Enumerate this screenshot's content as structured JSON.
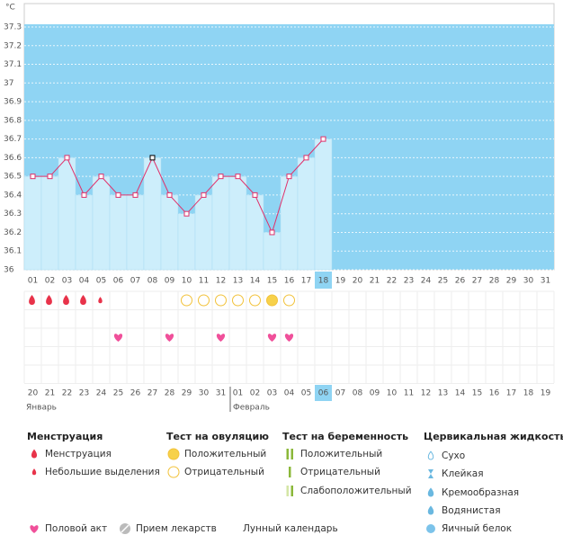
{
  "chart_data": {
    "type": "line",
    "y_unit": "°C",
    "categories": [
      "01",
      "02",
      "03",
      "04",
      "05",
      "06",
      "07",
      "08",
      "09",
      "10",
      "11",
      "12",
      "13",
      "14",
      "15",
      "16",
      "17",
      "18",
      "19",
      "20",
      "21",
      "22",
      "23",
      "24",
      "25",
      "26",
      "27",
      "28",
      "29",
      "30",
      "31"
    ],
    "values": [
      36.5,
      36.5,
      36.6,
      36.4,
      36.5,
      36.4,
      36.4,
      36.6,
      36.4,
      36.3,
      36.4,
      36.5,
      36.5,
      36.4,
      36.2,
      36.5,
      36.6,
      36.7,
      null,
      null,
      null,
      null,
      null,
      null,
      null,
      null,
      null,
      null,
      null,
      null,
      null
    ],
    "ylim": [
      36,
      37.3
    ],
    "yticks": [
      36,
      36.1,
      36.2,
      36.3,
      36.4,
      36.5,
      36.6,
      36.7,
      36.8,
      36.9,
      37,
      37.1,
      37.2,
      37.3
    ],
    "color": "#e0306a",
    "grid": true
  },
  "calendar": {
    "dates": [
      "20",
      "21",
      "22",
      "23",
      "24",
      "25",
      "26",
      "27",
      "28",
      "29",
      "30",
      "31",
      "01",
      "02",
      "03",
      "04",
      "05",
      "06",
      "07",
      "08",
      "09",
      "10",
      "11",
      "12",
      "13",
      "14",
      "15",
      "16",
      "17",
      "18",
      "19"
    ],
    "months": [
      "Январь",
      "Февраль"
    ]
  },
  "legend": [
    {
      "title": "Менструация",
      "items": [
        "Менструация",
        "Небольшие выделения"
      ]
    },
    {
      "title": "Тест на овуляцию",
      "items": [
        "Положительный",
        "Отрицательный"
      ]
    },
    {
      "title": "Тест на беременность",
      "items": [
        "Положительный",
        "Отрицательный",
        "Слабоположительный"
      ]
    },
    {
      "title": "Цервикальная жидкость",
      "items": [
        "Сухо",
        "Клейкая",
        "Кремообразная",
        "Водянистая",
        "Яичный белок"
      ]
    }
  ],
  "footer_legend": [
    "Половой акт",
    "Прием лекарств",
    "Лунный календарь"
  ]
}
